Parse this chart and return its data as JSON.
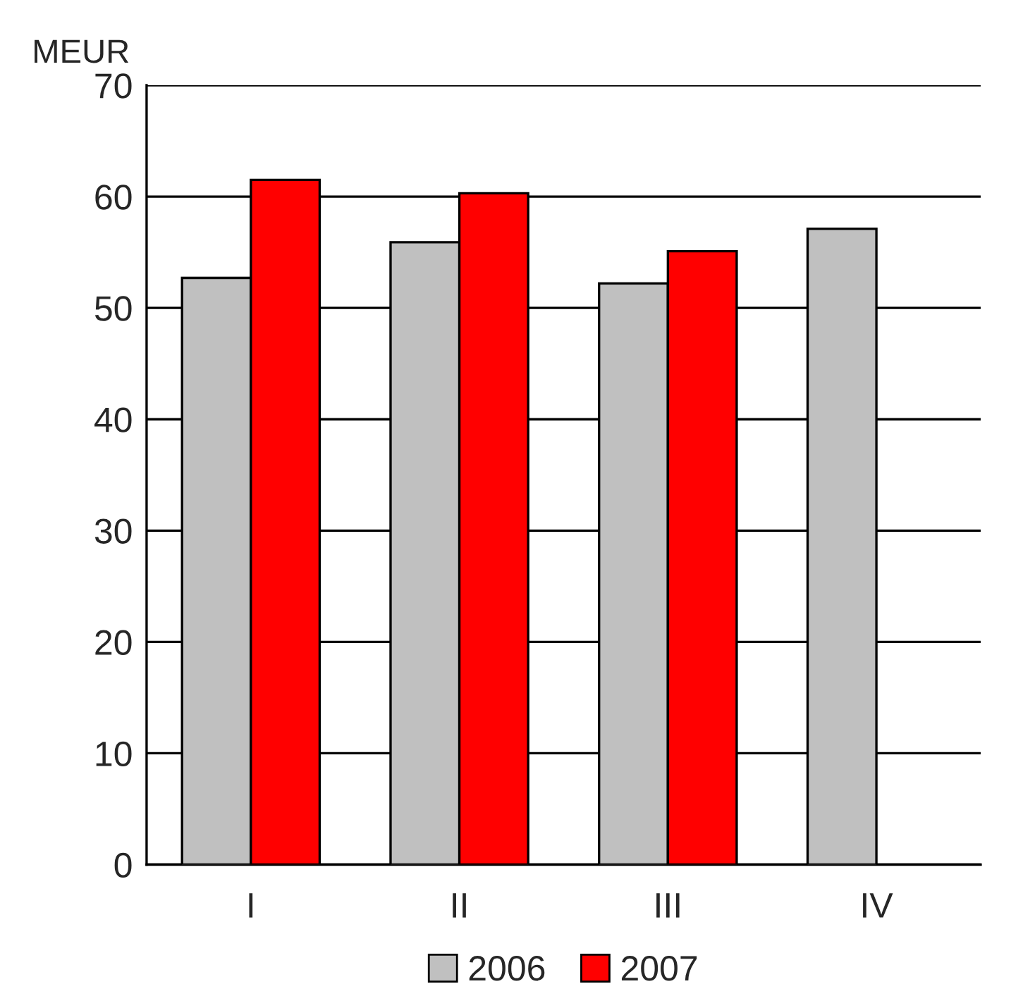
{
  "chart_data": {
    "type": "bar",
    "ylabel": "MEUR",
    "categories": [
      "I",
      "II",
      "III",
      "IV"
    ],
    "series": [
      {
        "name": "2006",
        "color": "#c0c0c0",
        "values": [
          52.7,
          55.9,
          52.2,
          57.1
        ]
      },
      {
        "name": "2007",
        "color": "#ff0000",
        "values": [
          61.5,
          60.3,
          55.1,
          null
        ]
      }
    ],
    "ylim": [
      0,
      70
    ],
    "yticks": [
      0,
      10,
      20,
      30,
      40,
      50,
      60,
      70
    ],
    "grid": "y",
    "legend": "bottom"
  }
}
